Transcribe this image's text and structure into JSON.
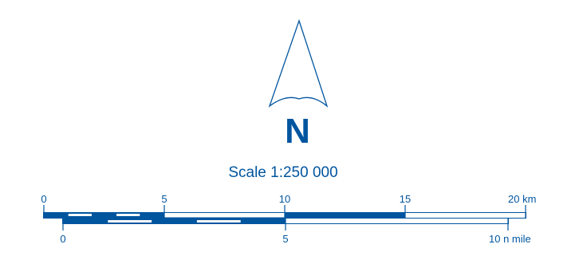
{
  "north_arrow": {
    "letter": "N",
    "icon": "north-arrow-icon"
  },
  "scale": {
    "text": "Scale 1:250 000",
    "ratio": 250000
  },
  "km_bar": {
    "unit": "km",
    "max": 20,
    "ticks": [
      {
        "value": 0,
        "label": "0"
      },
      {
        "value": 5,
        "label": "5"
      },
      {
        "value": 10,
        "label": "10"
      },
      {
        "value": 15,
        "label": "15"
      },
      {
        "value": 20,
        "label": "20 km"
      }
    ],
    "subdivision_km": 1
  },
  "nmile_bar": {
    "unit": "n mile",
    "max": 10,
    "ticks": [
      {
        "value": 0,
        "label": "0"
      },
      {
        "value": 5,
        "label": "5"
      },
      {
        "value": 10,
        "label": "10 n mile"
      }
    ],
    "subdivision_nmile": 1
  },
  "colors": {
    "primary": "#00559f",
    "background": "#ffffff"
  }
}
